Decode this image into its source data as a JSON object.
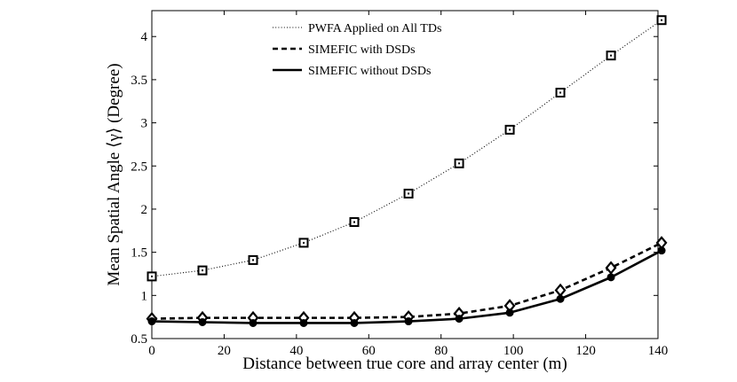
{
  "chart_data": {
    "type": "line",
    "xlabel": "Distance between true core and array center (m)",
    "ylabel": "Mean Spatial Angle ⟨γ⟩ (Degree)",
    "xlim": [
      0,
      140
    ],
    "ylim": [
      0.5,
      4.3
    ],
    "xticks": [
      0,
      20,
      40,
      60,
      80,
      100,
      120,
      140
    ],
    "yticks": [
      0.5,
      1,
      1.5,
      2,
      2.5,
      3,
      3.5,
      4
    ],
    "ytick_labels": [
      "0.5",
      "1",
      "1.5",
      "2",
      "2.5",
      "3",
      "3.5",
      "4"
    ],
    "legend_position": "top-center",
    "x": [
      0,
      14,
      28,
      42,
      56,
      71,
      85,
      99,
      113,
      127,
      141
    ],
    "series": [
      {
        "name": "PWFA Applied on All TDs",
        "line_style": "dotted",
        "marker": "square",
        "values": [
          1.22,
          1.29,
          1.41,
          1.61,
          1.85,
          2.18,
          2.53,
          2.92,
          3.35,
          3.78,
          4.19
        ]
      },
      {
        "name": "SIMEFIC with DSDs",
        "line_style": "dashed",
        "marker": "diamond",
        "values": [
          0.73,
          0.74,
          0.74,
          0.74,
          0.74,
          0.75,
          0.79,
          0.88,
          1.06,
          1.32,
          1.61
        ]
      },
      {
        "name": "SIMEFIC without DSDs",
        "line_style": "solid",
        "marker": "circle",
        "values": [
          0.7,
          0.69,
          0.68,
          0.68,
          0.68,
          0.7,
          0.73,
          0.8,
          0.96,
          1.21,
          1.52
        ]
      }
    ]
  }
}
